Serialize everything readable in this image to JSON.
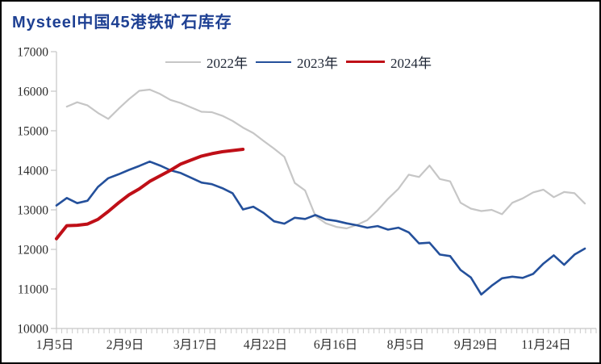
{
  "window": {
    "title": "Mysteel中国45港铁矿石库存"
  },
  "chart_data": {
    "type": "line",
    "title": "Mysteel中国45港铁矿石库存",
    "xlabel": "",
    "ylabel": "",
    "ylim": [
      10000,
      17000
    ],
    "y_ticks": [
      10000,
      11000,
      12000,
      13000,
      14000,
      15000,
      16000,
      17000
    ],
    "x_tick_labels": [
      "1月5日",
      "2月9日",
      "3月17日",
      "4月22日",
      "6月16日",
      "8月5日",
      "9月29日",
      "11月24日"
    ],
    "grid": false,
    "legend_position": "top",
    "axis_color": "#c6c6c6",
    "tick_label_color": "#2b2b2b",
    "series": [
      {
        "name": "2022年",
        "color": "#c6c6c6",
        "line_width": 2.2,
        "values": [
          null,
          15610,
          15720,
          15640,
          15450,
          15300,
          15560,
          15800,
          16010,
          16040,
          15930,
          15780,
          15700,
          15590,
          15480,
          15470,
          15380,
          15250,
          15080,
          14940,
          14740,
          14550,
          14340,
          13680,
          13490,
          12840,
          12660,
          12570,
          12530,
          12620,
          12740,
          12990,
          13280,
          13530,
          13890,
          13830,
          14120,
          13780,
          13720,
          13180,
          13030,
          12970,
          13000,
          12890,
          13180,
          13290,
          13440,
          13510,
          13320,
          13450,
          13420,
          13160
        ]
      },
      {
        "name": "2023年",
        "color": "#24509b",
        "line_width": 2.6,
        "values": [
          13110,
          13300,
          13170,
          13230,
          13580,
          13800,
          13900,
          14010,
          14110,
          14220,
          14120,
          14000,
          13930,
          13810,
          13690,
          13650,
          13550,
          13420,
          13010,
          13080,
          12920,
          12710,
          12650,
          12800,
          12770,
          12870,
          12760,
          12720,
          12660,
          12610,
          12550,
          12590,
          12500,
          12550,
          12430,
          12150,
          12170,
          11870,
          11830,
          11480,
          11290,
          10860,
          11080,
          11270,
          11310,
          11280,
          11380,
          11640,
          11850,
          11610,
          11870,
          12020
        ]
      },
      {
        "name": "2024年",
        "color": "#bf0f17",
        "line_width": 4,
        "values": [
          12270,
          12600,
          12610,
          12640,
          12760,
          12960,
          13180,
          13380,
          13530,
          13720,
          13860,
          14000,
          14160,
          14260,
          14360,
          14420,
          14470,
          14500,
          14530
        ]
      }
    ]
  }
}
